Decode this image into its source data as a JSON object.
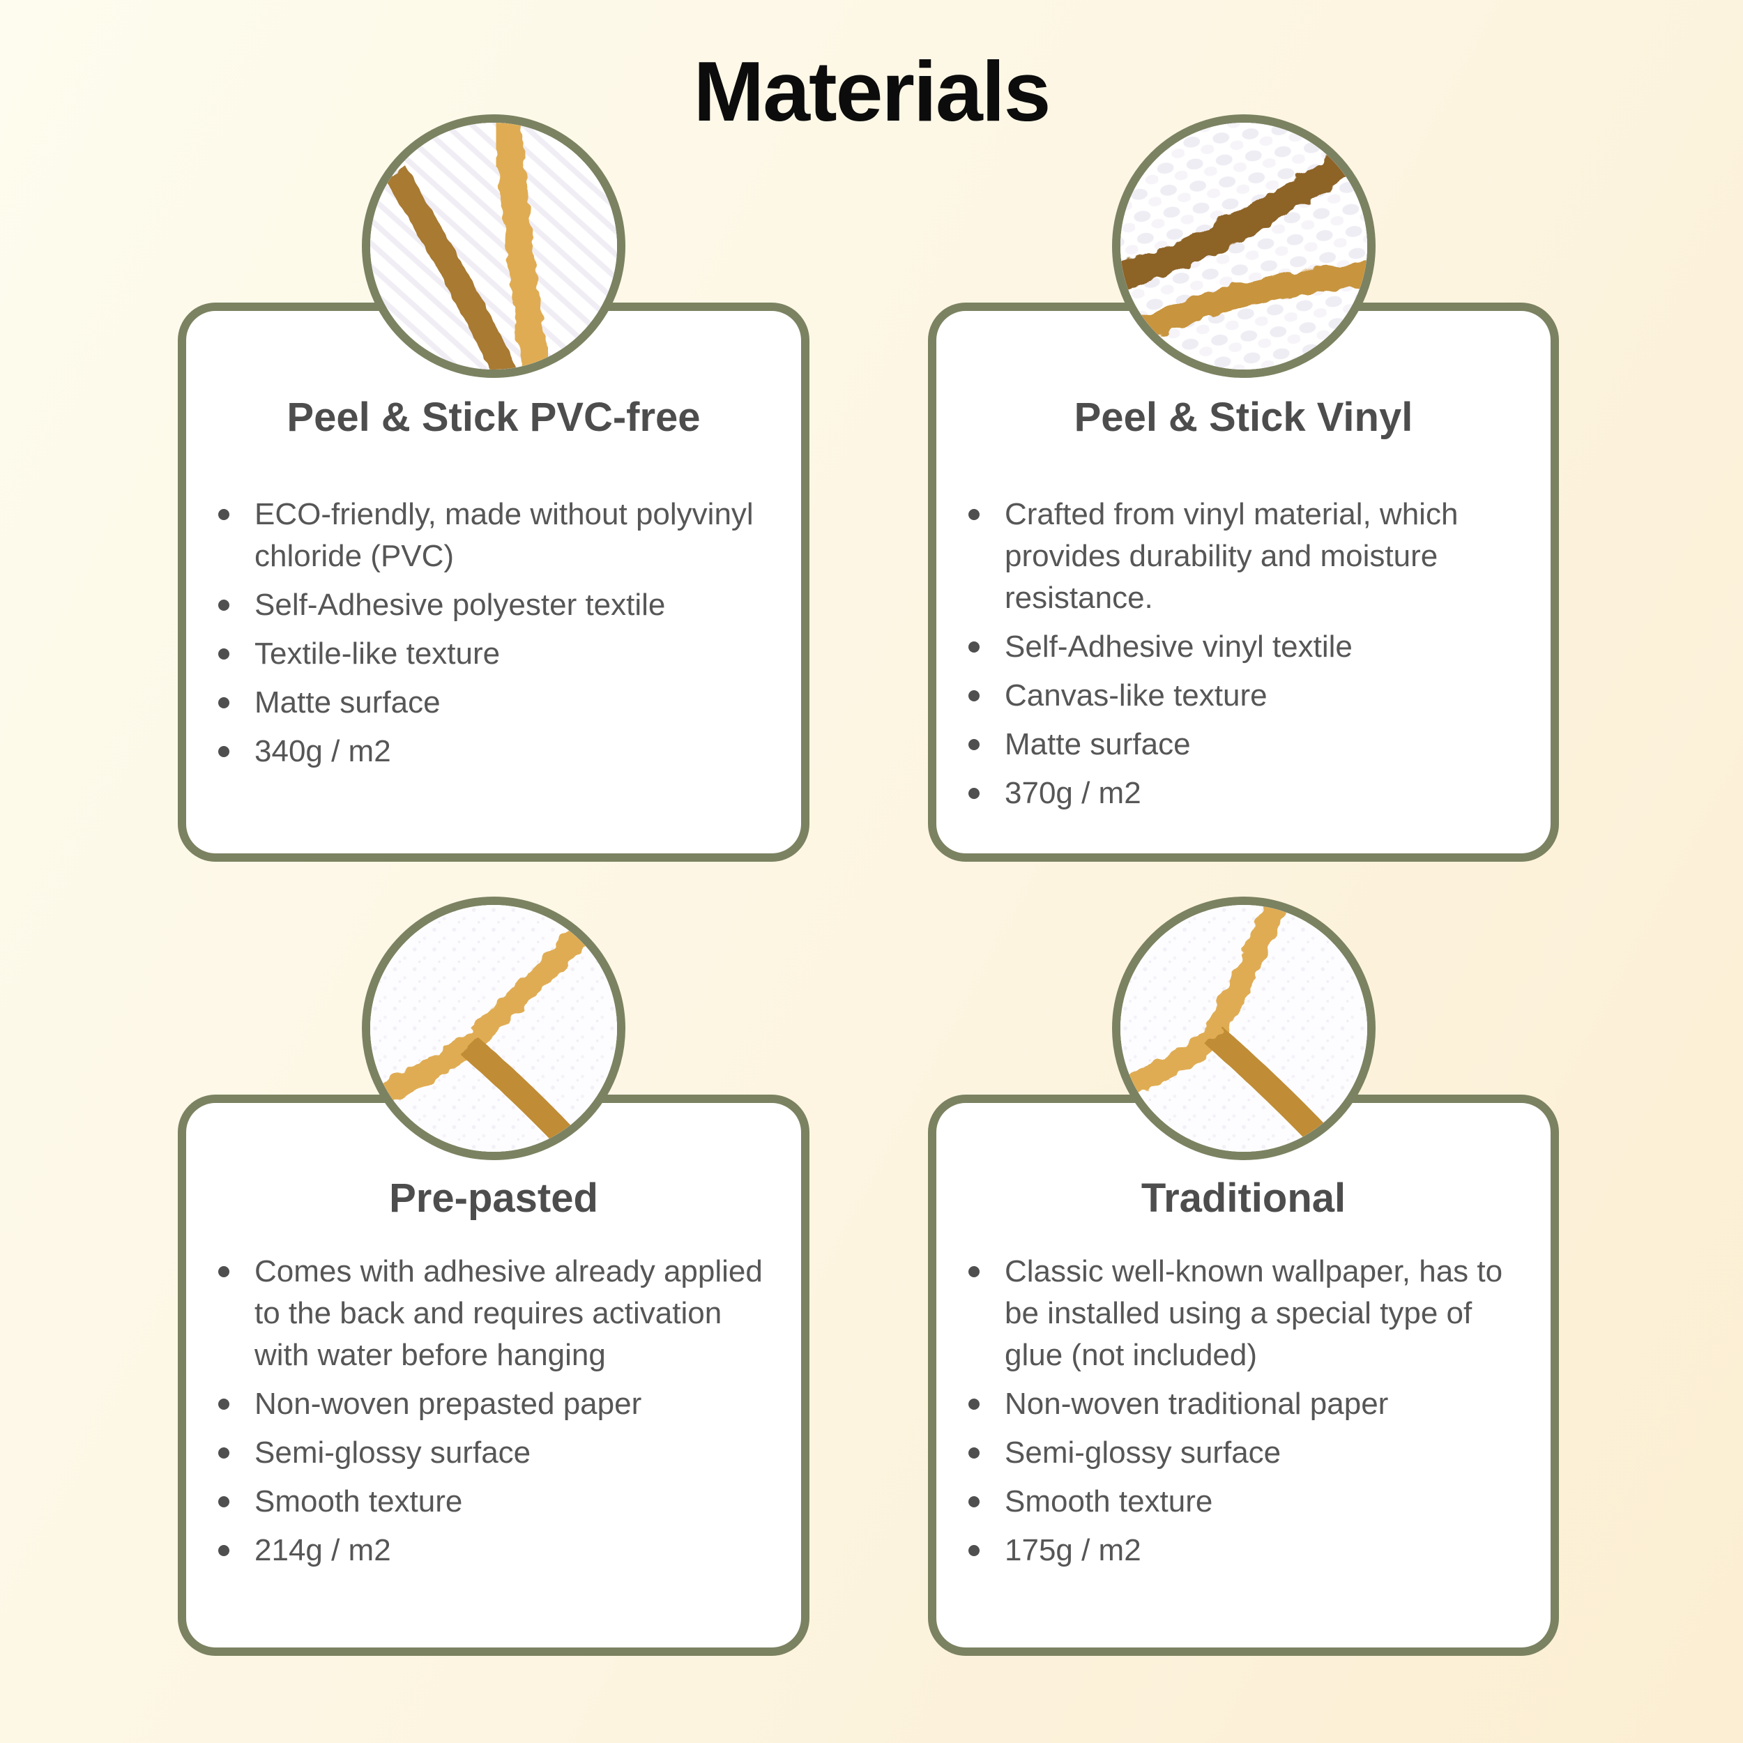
{
  "page": {
    "title": "Materials"
  },
  "colors": {
    "background_gradient_start": "#fdfcee",
    "background_gradient_mid": "#fdf5e2",
    "background_gradient_end": "#fbeed2",
    "card_border": "#7b8261",
    "card_background": "#ffffff",
    "page_title_color": "#0c0c0c",
    "card_title_color": "#4d4d4d",
    "body_text_color": "#565656",
    "bullet_dot_color": "#4f4f4f",
    "swatch_gold": "#e0ac52",
    "swatch_amber": "#c8943e",
    "swatch_brown": "#a87a30",
    "swatch_dark_brown": "#8d6426"
  },
  "cards": [
    {
      "title": "Peel & Stick PVC-free",
      "swatch": "textile-weave",
      "bullets": [
        "ECO-friendly, made without polyvinyl chloride (PVC)",
        "Self-Adhesive polyester textile",
        "Textile-like texture",
        "Matte surface",
        "340g / m2"
      ]
    },
    {
      "title": "Peel & Stick Vinyl",
      "swatch": "vinyl-canvas",
      "bullets": [
        "Crafted from vinyl material, which provides durability and moisture resistance.",
        "Self-Adhesive vinyl textile",
        "Canvas-like texture",
        "Matte surface",
        "370g / m2"
      ]
    },
    {
      "title": "Pre-pasted",
      "swatch": "prepasted-smooth",
      "bullets": [
        "Comes with adhesive already applied to the back and requires activation with water before hanging",
        "Non-woven prepasted paper",
        "Semi-glossy surface",
        "Smooth texture",
        "214g / m2"
      ]
    },
    {
      "title": "Traditional",
      "swatch": "traditional-smooth",
      "bullets": [
        "Classic well-known wallpaper, has to be installed using a special type of glue (not included)",
        "Non-woven traditional paper",
        "Semi-glossy surface",
        "Smooth texture",
        "175g / m2"
      ]
    }
  ]
}
